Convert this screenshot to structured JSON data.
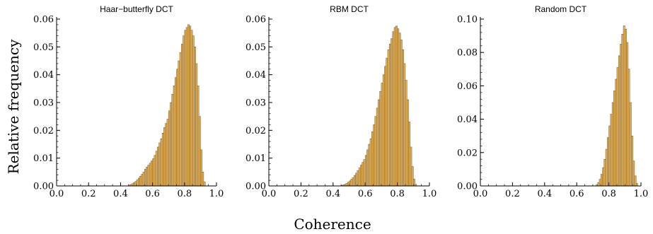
{
  "figure": {
    "ylabel": "Relative frequency",
    "xlabel": "Coherence"
  },
  "style": {
    "bar_fill": "#e8b45c",
    "bar_stroke": "#6b5020",
    "axis_color": "#000000"
  },
  "chart_data": [
    {
      "type": "bar",
      "title": "Haar−butterfly DCT",
      "xlim": [
        0.0,
        1.0
      ],
      "ylim": [
        0.0,
        0.06
      ],
      "xticks": [
        "0.0",
        "0.2",
        "0.4",
        "0.6",
        "0.8",
        "1.0"
      ],
      "yticks": [
        "0.00",
        "0.01",
        "0.02",
        "0.03",
        "0.04",
        "0.05",
        "0.06"
      ],
      "bin_width": 0.01,
      "bin_start": 0.45,
      "values": [
        0.0003,
        0.0005,
        0.0008,
        0.0012,
        0.0016,
        0.0022,
        0.0028,
        0.0035,
        0.0042,
        0.005,
        0.006,
        0.0068,
        0.0075,
        0.0082,
        0.009,
        0.0098,
        0.011,
        0.0125,
        0.014,
        0.0155,
        0.017,
        0.019,
        0.021,
        0.0225,
        0.024,
        0.027,
        0.03,
        0.033,
        0.036,
        0.039,
        0.042,
        0.045,
        0.048,
        0.051,
        0.054,
        0.056,
        0.057,
        0.058,
        0.0575,
        0.056,
        0.054,
        0.05,
        0.044,
        0.036,
        0.025,
        0.013,
        0.005,
        0.0015
      ]
    },
    {
      "type": "bar",
      "title": "RBM DCT",
      "xlim": [
        0.0,
        1.0
      ],
      "ylim": [
        0.0,
        0.06
      ],
      "xticks": [
        "0.0",
        "0.2",
        "0.4",
        "0.6",
        "0.8",
        "1.0"
      ],
      "yticks": [
        "0.00",
        "0.01",
        "0.02",
        "0.03",
        "0.04",
        "0.05",
        "0.06"
      ],
      "bin_width": 0.01,
      "bin_start": 0.45,
      "values": [
        0.0002,
        0.0004,
        0.0006,
        0.0009,
        0.0013,
        0.0018,
        0.0024,
        0.003,
        0.0038,
        0.0046,
        0.0055,
        0.0065,
        0.0075,
        0.0085,
        0.0095,
        0.011,
        0.013,
        0.015,
        0.017,
        0.0195,
        0.022,
        0.025,
        0.028,
        0.031,
        0.034,
        0.037,
        0.04,
        0.043,
        0.046,
        0.049,
        0.051,
        0.053,
        0.0555,
        0.057,
        0.0575,
        0.0565,
        0.055,
        0.0525,
        0.049,
        0.044,
        0.038,
        0.031,
        0.023,
        0.014,
        0.007,
        0.0025,
        0.0006
      ]
    },
    {
      "type": "bar",
      "title": "Random DCT",
      "xlim": [
        0.0,
        1.0
      ],
      "ylim": [
        0.0,
        0.1
      ],
      "xticks": [
        "0.0",
        "0.2",
        "0.4",
        "0.6",
        "0.8",
        "1.0"
      ],
      "yticks": [
        "0.00",
        "0.02",
        "0.04",
        "0.06",
        "0.08",
        "0.10"
      ],
      "bin_width": 0.01,
      "bin_start": 0.72,
      "values": [
        0.0008,
        0.002,
        0.004,
        0.007,
        0.011,
        0.016,
        0.022,
        0.029,
        0.036,
        0.043,
        0.05,
        0.057,
        0.064,
        0.071,
        0.078,
        0.085,
        0.091,
        0.096,
        0.094,
        0.086,
        0.07,
        0.05,
        0.03,
        0.015,
        0.006,
        0.0015
      ]
    }
  ]
}
